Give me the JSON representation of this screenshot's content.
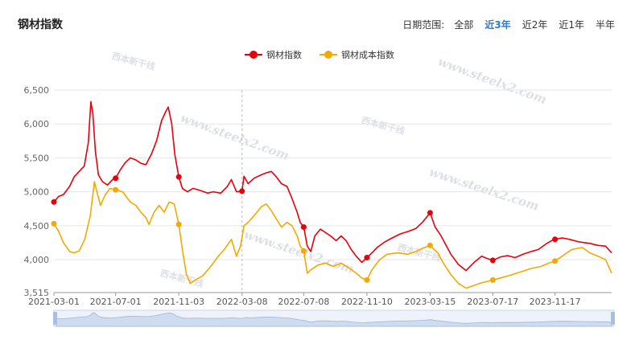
{
  "header": {
    "title": "钢材指数",
    "range_label": "日期范围:",
    "range_options": [
      "全部",
      "近3年",
      "近2年",
      "近1年",
      "半年"
    ],
    "range_active": "近3年"
  },
  "watermark": {
    "logo_text": "西本新干线",
    "url_text": "www.steelx2.com"
  },
  "chart_data": {
    "type": "line",
    "title": "",
    "xlabel": "",
    "ylabel": "",
    "x_tick_labels": [
      "2021-03-01",
      "2021-07-01",
      "2021-11-03",
      "2022-03-08",
      "2022-07-08",
      "2022-11-10",
      "2023-03-15",
      "2023-07-17",
      "2023-11-17"
    ],
    "y_ticks": [
      "6,500",
      "6,000",
      "5,500",
      "5,000",
      "4,500",
      "4,000",
      "3,515"
    ],
    "ylim": [
      3515,
      6500
    ],
    "grid": true,
    "legend_position": "top-center",
    "x_range": [
      "2021-03-01",
      "2024-03-08"
    ],
    "marker_x": "2022-03-08",
    "series": [
      {
        "name": "钢材指数",
        "color": "#e8000b",
        "data": [
          [
            "2021-03-01",
            4850
          ],
          [
            "2021-03-10",
            4930
          ],
          [
            "2021-03-20",
            4960
          ],
          [
            "2021-04-01",
            5080
          ],
          [
            "2021-04-10",
            5220
          ],
          [
            "2021-04-20",
            5300
          ],
          [
            "2021-04-30",
            5380
          ],
          [
            "2021-05-08",
            5720
          ],
          [
            "2021-05-13",
            6330
          ],
          [
            "2021-05-17",
            6150
          ],
          [
            "2021-05-22",
            5600
          ],
          [
            "2021-05-28",
            5250
          ],
          [
            "2021-06-05",
            5150
          ],
          [
            "2021-06-15",
            5100
          ],
          [
            "2021-06-25",
            5180
          ],
          [
            "2021-07-01",
            5200
          ],
          [
            "2021-07-10",
            5320
          ],
          [
            "2021-07-20",
            5430
          ],
          [
            "2021-07-30",
            5500
          ],
          [
            "2021-08-10",
            5470
          ],
          [
            "2021-08-20",
            5420
          ],
          [
            "2021-08-30",
            5400
          ],
          [
            "2021-09-10",
            5560
          ],
          [
            "2021-09-20",
            5750
          ],
          [
            "2021-09-30",
            6050
          ],
          [
            "2021-10-08",
            6180
          ],
          [
            "2021-10-13",
            6250
          ],
          [
            "2021-10-20",
            6000
          ],
          [
            "2021-10-26",
            5550
          ],
          [
            "2021-11-03",
            5220
          ],
          [
            "2021-11-10",
            5050
          ],
          [
            "2021-11-20",
            5000
          ],
          [
            "2021-12-01",
            5050
          ],
          [
            "2021-12-15",
            5020
          ],
          [
            "2021-12-30",
            4980
          ],
          [
            "2022-01-10",
            5000
          ],
          [
            "2022-01-25",
            4980
          ],
          [
            "2022-02-07",
            5080
          ],
          [
            "2022-02-15",
            5180
          ],
          [
            "2022-02-25",
            5000
          ],
          [
            "2022-03-08",
            5010
          ],
          [
            "2022-03-12",
            5230
          ],
          [
            "2022-03-20",
            5120
          ],
          [
            "2022-04-01",
            5200
          ],
          [
            "2022-04-15",
            5250
          ],
          [
            "2022-04-25",
            5280
          ],
          [
            "2022-05-05",
            5300
          ],
          [
            "2022-05-15",
            5220
          ],
          [
            "2022-05-25",
            5120
          ],
          [
            "2022-06-05",
            5080
          ],
          [
            "2022-06-15",
            4900
          ],
          [
            "2022-06-25",
            4700
          ],
          [
            "2022-07-01",
            4550
          ],
          [
            "2022-07-08",
            4480
          ],
          [
            "2022-07-15",
            4200
          ],
          [
            "2022-07-22",
            4120
          ],
          [
            "2022-07-30",
            4350
          ],
          [
            "2022-08-10",
            4450
          ],
          [
            "2022-08-20",
            4400
          ],
          [
            "2022-08-30",
            4350
          ],
          [
            "2022-09-10",
            4280
          ],
          [
            "2022-09-20",
            4350
          ],
          [
            "2022-09-30",
            4280
          ],
          [
            "2022-10-10",
            4150
          ],
          [
            "2022-10-20",
            4050
          ],
          [
            "2022-10-31",
            3960
          ],
          [
            "2022-11-10",
            4030
          ],
          [
            "2022-11-20",
            4100
          ],
          [
            "2022-11-30",
            4180
          ],
          [
            "2022-12-15",
            4260
          ],
          [
            "2022-12-30",
            4320
          ],
          [
            "2023-01-15",
            4380
          ],
          [
            "2023-02-01",
            4420
          ],
          [
            "2023-02-15",
            4460
          ],
          [
            "2023-03-01",
            4560
          ],
          [
            "2023-03-15",
            4690
          ],
          [
            "2023-03-25",
            4480
          ],
          [
            "2023-04-05",
            4360
          ],
          [
            "2023-04-15",
            4220
          ],
          [
            "2023-04-25",
            4080
          ],
          [
            "2023-05-10",
            3930
          ],
          [
            "2023-05-25",
            3840
          ],
          [
            "2023-06-10",
            3960
          ],
          [
            "2023-06-25",
            4050
          ],
          [
            "2023-07-05",
            4020
          ],
          [
            "2023-07-17",
            3990
          ],
          [
            "2023-08-01",
            4040
          ],
          [
            "2023-08-15",
            4060
          ],
          [
            "2023-08-30",
            4030
          ],
          [
            "2023-09-15",
            4080
          ],
          [
            "2023-10-01",
            4120
          ],
          [
            "2023-10-15",
            4150
          ],
          [
            "2023-10-30",
            4230
          ],
          [
            "2023-11-10",
            4280
          ],
          [
            "2023-11-17",
            4300
          ],
          [
            "2023-12-01",
            4320
          ],
          [
            "2023-12-15",
            4300
          ],
          [
            "2024-01-05",
            4260
          ],
          [
            "2024-01-25",
            4240
          ],
          [
            "2024-02-10",
            4210
          ],
          [
            "2024-02-25",
            4200
          ],
          [
            "2024-03-08",
            4100
          ]
        ]
      },
      {
        "name": "钢材成本指数",
        "color": "#f5a800",
        "data": [
          [
            "2021-03-01",
            4530
          ],
          [
            "2021-03-10",
            4420
          ],
          [
            "2021-03-20",
            4250
          ],
          [
            "2021-04-01",
            4120
          ],
          [
            "2021-04-10",
            4100
          ],
          [
            "2021-04-20",
            4130
          ],
          [
            "2021-05-01",
            4300
          ],
          [
            "2021-05-12",
            4650
          ],
          [
            "2021-05-20",
            5150
          ],
          [
            "2021-05-25",
            5000
          ],
          [
            "2021-06-01",
            4800
          ],
          [
            "2021-06-10",
            4950
          ],
          [
            "2021-06-20",
            5050
          ],
          [
            "2021-07-01",
            5030
          ],
          [
            "2021-07-15",
            5000
          ],
          [
            "2021-07-30",
            4850
          ],
          [
            "2021-08-10",
            4800
          ],
          [
            "2021-08-20",
            4700
          ],
          [
            "2021-08-30",
            4620
          ],
          [
            "2021-09-05",
            4520
          ],
          [
            "2021-09-15",
            4700
          ],
          [
            "2021-09-25",
            4800
          ],
          [
            "2021-10-05",
            4700
          ],
          [
            "2021-10-15",
            4850
          ],
          [
            "2021-10-25",
            4820
          ],
          [
            "2021-11-03",
            4520
          ],
          [
            "2021-11-10",
            4150
          ],
          [
            "2021-11-18",
            3780
          ],
          [
            "2021-11-26",
            3650
          ],
          [
            "2021-12-05",
            3700
          ],
          [
            "2021-12-20",
            3760
          ],
          [
            "2022-01-05",
            3900
          ],
          [
            "2022-01-20",
            4050
          ],
          [
            "2022-02-01",
            4150
          ],
          [
            "2022-02-15",
            4300
          ],
          [
            "2022-02-25",
            4050
          ],
          [
            "2022-03-05",
            4200
          ],
          [
            "2022-03-12",
            4500
          ],
          [
            "2022-03-20",
            4550
          ],
          [
            "2022-04-01",
            4650
          ],
          [
            "2022-04-15",
            4780
          ],
          [
            "2022-04-25",
            4820
          ],
          [
            "2022-05-05",
            4720
          ],
          [
            "2022-05-15",
            4600
          ],
          [
            "2022-05-25",
            4480
          ],
          [
            "2022-06-05",
            4550
          ],
          [
            "2022-06-15",
            4500
          ],
          [
            "2022-06-25",
            4350
          ],
          [
            "2022-07-01",
            4200
          ],
          [
            "2022-07-08",
            4130
          ],
          [
            "2022-07-15",
            3800
          ],
          [
            "2022-07-22",
            3850
          ],
          [
            "2022-08-05",
            3920
          ],
          [
            "2022-08-20",
            3950
          ],
          [
            "2022-09-05",
            3900
          ],
          [
            "2022-09-20",
            3950
          ],
          [
            "2022-10-05",
            3880
          ],
          [
            "2022-10-20",
            3800
          ],
          [
            "2022-10-31",
            3730
          ],
          [
            "2022-11-10",
            3700
          ],
          [
            "2022-11-20",
            3850
          ],
          [
            "2022-12-05",
            4000
          ],
          [
            "2022-12-20",
            4080
          ],
          [
            "2023-01-10",
            4100
          ],
          [
            "2023-01-30",
            4080
          ],
          [
            "2023-02-15",
            4120
          ],
          [
            "2023-03-01",
            4170
          ],
          [
            "2023-03-15",
            4210
          ],
          [
            "2023-03-30",
            4100
          ],
          [
            "2023-04-10",
            3950
          ],
          [
            "2023-04-25",
            3780
          ],
          [
            "2023-05-10",
            3650
          ],
          [
            "2023-05-25",
            3580
          ],
          [
            "2023-06-10",
            3620
          ],
          [
            "2023-06-25",
            3660
          ],
          [
            "2023-07-17",
            3700
          ],
          [
            "2023-08-01",
            3730
          ],
          [
            "2023-08-20",
            3770
          ],
          [
            "2023-09-10",
            3820
          ],
          [
            "2023-10-01",
            3870
          ],
          [
            "2023-10-20",
            3900
          ],
          [
            "2023-11-05",
            3950
          ],
          [
            "2023-11-17",
            3980
          ],
          [
            "2023-12-01",
            4050
          ],
          [
            "2023-12-20",
            4150
          ],
          [
            "2024-01-10",
            4180
          ],
          [
            "2024-01-25",
            4100
          ],
          [
            "2024-02-10",
            4050
          ],
          [
            "2024-02-25",
            4000
          ],
          [
            "2024-03-08",
            3800
          ]
        ]
      }
    ]
  }
}
